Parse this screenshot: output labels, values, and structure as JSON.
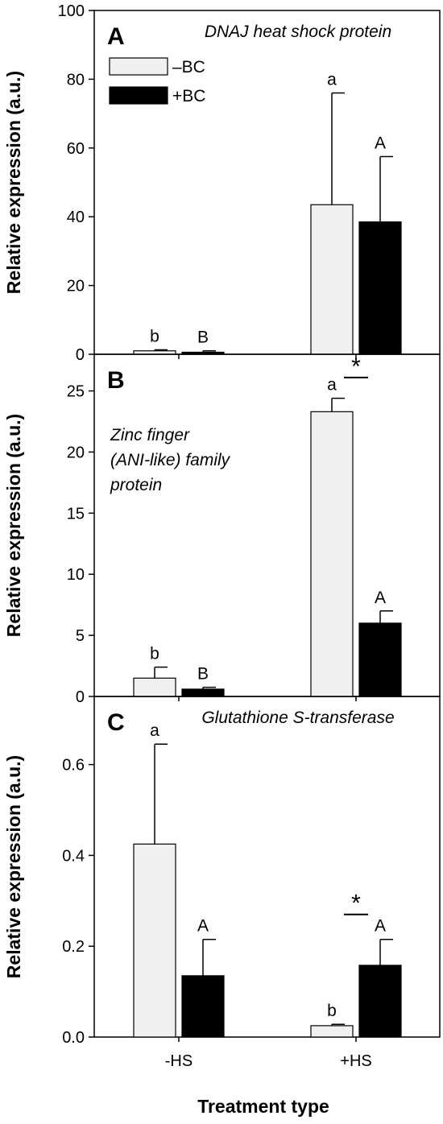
{
  "chart_data": {
    "type": "bar",
    "categories": [
      "-HS",
      "+HS"
    ],
    "xlabel": "Treatment type",
    "legend": {
      "placement": "top-left",
      "entries": [
        {
          "label": "–BC",
          "color": "#f0f0f0"
        },
        {
          "label": "+BC",
          "color": "#000000"
        }
      ]
    },
    "panels": [
      {
        "letter": "A",
        "title_lines": [
          "DNAJ heat shock protein"
        ],
        "ylabel": "Relative expression (a.u.)",
        "ylim": [
          0,
          100
        ],
        "yticks": [
          0,
          20,
          40,
          60,
          80,
          100
        ],
        "ytick_labels": [
          "0",
          "20",
          "40",
          "60",
          "80",
          "100"
        ],
        "series": [
          {
            "name": "–BC",
            "values": [
              1.0,
              43.5
            ],
            "errors": [
              0.3,
              32.5
            ],
            "labels": [
              "b",
              "a"
            ]
          },
          {
            "name": "+BC",
            "values": [
              0.6,
              38.5
            ],
            "errors": [
              0.4,
              19.0
            ],
            "labels": [
              "B",
              "A"
            ]
          }
        ],
        "significance": []
      },
      {
        "letter": "B",
        "title_lines": [
          "Zinc finger",
          "(ANI-like) family",
          "protein"
        ],
        "ylabel": "Relative expression (a.u.)",
        "ylim": [
          0,
          28
        ],
        "yticks": [
          0,
          5,
          10,
          15,
          20,
          25
        ],
        "ytick_labels": [
          "0",
          "5",
          "10",
          "15",
          "20",
          "25"
        ],
        "series": [
          {
            "name": "–BC",
            "values": [
              1.5,
              23.3
            ],
            "errors": [
              0.9,
              1.1
            ],
            "labels": [
              "b",
              "a"
            ]
          },
          {
            "name": "+BC",
            "values": [
              0.6,
              6.0
            ],
            "errors": [
              0.15,
              1.0
            ],
            "labels": [
              "B",
              "A"
            ]
          }
        ],
        "significance": [
          {
            "category": 1,
            "symbol": "*",
            "y": 26.1
          }
        ]
      },
      {
        "letter": "C",
        "title_lines": [
          "Glutathione S-transferase"
        ],
        "ylabel": "Relative expression (a.u.)",
        "ylim": [
          0,
          0.75
        ],
        "yticks": [
          0,
          0.2,
          0.4,
          0.6
        ],
        "ytick_labels": [
          "0.0",
          "0.2",
          "0.4",
          "0.6"
        ],
        "series": [
          {
            "name": "–BC",
            "values": [
              0.425,
              0.025
            ],
            "errors": [
              0.22,
              0.003
            ],
            "labels": [
              "a",
              "b"
            ]
          },
          {
            "name": "+BC",
            "values": [
              0.135,
              0.158
            ],
            "errors": [
              0.08,
              0.057
            ],
            "labels": [
              "A",
              "A"
            ]
          }
        ],
        "significance": [
          {
            "category": 1,
            "symbol": "*",
            "y": 0.27
          }
        ]
      }
    ]
  }
}
